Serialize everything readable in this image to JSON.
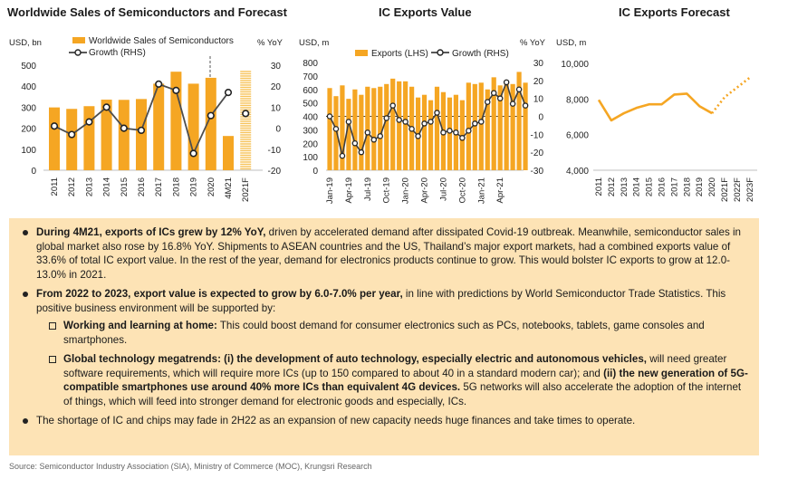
{
  "chart_data": [
    {
      "type": "bar+line",
      "title": "Worldwide Sales of Semiconductors and Forecast",
      "ylabel_left": "USD, bn",
      "ylabel_right": "% YoY",
      "categories": [
        "2011",
        "2012",
        "2013",
        "2014",
        "2015",
        "2016",
        "2017",
        "2018",
        "2019",
        "2020",
        "4M21",
        "2021F"
      ],
      "series": [
        {
          "name": "Worldwide Sales of Semiconductors",
          "kind": "bar",
          "axis": "left",
          "values": [
            299,
            292,
            305,
            336,
            335,
            339,
            412,
            469,
            412,
            440,
            163,
            470
          ]
        },
        {
          "name": "Growth (RHS)",
          "kind": "line",
          "axis": "right",
          "values": [
            1,
            -3,
            3,
            10,
            0,
            -1,
            21,
            18,
            -12,
            6,
            17,
            null
          ]
        }
      ],
      "forecast_marker": {
        "category": "2021F",
        "value": 7
      },
      "ylim_left": [
        0,
        500
      ],
      "yticks_left": [
        0,
        100,
        200,
        300,
        400,
        500
      ],
      "ylim_right": [
        -20,
        30
      ],
      "yticks_right": [
        -20,
        -10,
        0,
        10,
        20,
        30
      ],
      "colors": {
        "bar": "#f5a623",
        "line": "#4d4d4d",
        "forecast_bar": "#f7c35a"
      }
    },
    {
      "type": "bar+line",
      "title": "IC Exports Value",
      "ylabel_left": "USD, m",
      "ylabel_right": "% YoY",
      "xticks": [
        "Jan-19",
        "Apr-19",
        "Jul-19",
        "Oct-19",
        "Jan-20",
        "Apr-20",
        "Jul-20",
        "Oct-20",
        "Jan-21",
        "Apr-21"
      ],
      "series": [
        {
          "name": "Exports (LHS)",
          "kind": "bar",
          "axis": "left",
          "values": [
            610,
            550,
            630,
            530,
            600,
            560,
            620,
            610,
            620,
            640,
            680,
            660,
            660,
            620,
            540,
            560,
            520,
            620,
            580,
            540,
            560,
            520,
            650,
            640,
            650,
            600,
            690,
            630,
            660,
            640,
            730,
            650
          ]
        },
        {
          "name": "Growth (RHS)",
          "kind": "line",
          "axis": "right",
          "values": [
            0,
            -7,
            -22,
            -3,
            -15,
            -20,
            -9,
            -13,
            -11,
            -1,
            6,
            -2,
            -3,
            -7,
            -11,
            -4,
            -3,
            2,
            -9,
            -8,
            -9,
            -12,
            -8,
            -4,
            -3,
            8,
            13,
            10,
            19,
            7,
            15,
            6
          ]
        }
      ],
      "ylim_left": [
        0,
        800
      ],
      "yticks_left": [
        0,
        100,
        200,
        300,
        400,
        500,
        600,
        700,
        800
      ],
      "ylim_right": [
        -30,
        30
      ],
      "yticks_right": [
        -30,
        -20,
        -10,
        0,
        10,
        20,
        30
      ],
      "colors": {
        "bar": "#f5a623",
        "line": "#3d3d3d"
      }
    },
    {
      "type": "line",
      "title": "IC Exports Forecast",
      "ylabel": "USD, m",
      "categories": [
        "2011",
        "2012",
        "2013",
        "2014",
        "2015",
        "2016",
        "2017",
        "2018",
        "2019",
        "2020",
        "2021F",
        "2022F",
        "2023F"
      ],
      "series": [
        {
          "name": "Actual",
          "style": "solid",
          "values": [
            7950,
            6800,
            7200,
            7500,
            7700,
            7700,
            8250,
            8300,
            7600,
            7200,
            null,
            null,
            null
          ]
        },
        {
          "name": "Forecast",
          "style": "dotted",
          "values": [
            null,
            null,
            null,
            null,
            null,
            null,
            null,
            null,
            null,
            7200,
            8100,
            8650,
            9200
          ]
        }
      ],
      "ylim": [
        4000,
        10000
      ],
      "yticks": [
        "4,000",
        "6,000",
        "8,000",
        "10,000"
      ],
      "colors": {
        "line": "#f5a623"
      }
    }
  ],
  "notes": {
    "b1_bold": "During 4M21, exports of ICs grew by 12% YoY,",
    "b1_text": " driven by accelerated demand after dissipated Covid-19 outbreak. Meanwhile, semiconductor sales in global market also rose by 16.8% YoY. Shipments to ASEAN countries and the US, Thailand’s major export markets, had a combined exports value of 33.6% of total IC export value. In the rest of the year, demand for electronics products continue to grow. This would bolster IC exports to grow at 12.0-13.0% in 2021.",
    "b2_bold": "From 2022 to 2023, export value is expected to grow by 6.0-7.0% per year,",
    "b2_text": " in line with predictions by World Semiconductor Trade Statistics. This positive business environment will be supported by:",
    "s1_bold": "Working and learning at home:",
    "s1_text": " This could boost demand for consumer electronics such as PCs, notebooks, tablets, game consoles and smartphones.",
    "s2_bold1": "Global technology megatrends: (i) the development of auto technology, especially electric and autonomous vehicles,",
    "s2_text1": " will need greater software requirements, which will require more ICs (up to 150 compared to about 40 in a standard modern car); and ",
    "s2_bold2": "(ii) the new generation of 5G-compatible smartphones use around 40% more ICs than equivalent 4G devices.",
    "s2_text2": " 5G networks will also accelerate the adoption of the internet of things, which will feed into stronger demand for electronic goods and especially, ICs.",
    "b3_text": "The shortage of IC and chips may fade in 2H22 as an expansion of new capacity needs huge finances and take times to operate."
  },
  "source": "Source: Semiconductor Industry Association (SIA), Ministry of Commerce (MOC), Krungsri Research"
}
